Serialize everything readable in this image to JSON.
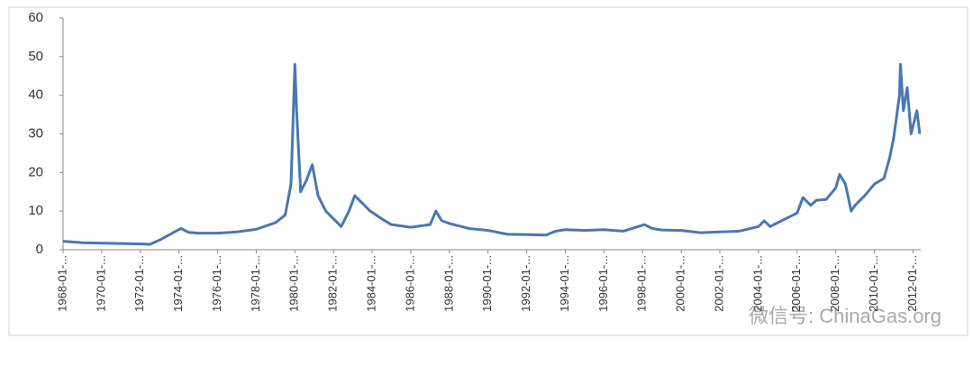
{
  "chart_data": {
    "type": "line",
    "x": [
      1968,
      1969,
      1970,
      1971,
      1972,
      1972.5,
      1973,
      1974.1,
      1974.5,
      1975,
      1976,
      1977,
      1978,
      1979,
      1979.5,
      1979.8,
      1980.0,
      1980.1,
      1980.3,
      1980.6,
      1980.9,
      1981.2,
      1981.6,
      1982,
      1982.4,
      1982.8,
      1983.1,
      1983.5,
      1983.9,
      1984.5,
      1985,
      1986,
      1987,
      1987.3,
      1987.6,
      1988,
      1989,
      1990,
      1991,
      1992,
      1993,
      1993.5,
      1994,
      1995,
      1996,
      1997,
      1998.1,
      1998.5,
      1999,
      2000,
      2001,
      2002,
      2003,
      2004,
      2004.3,
      2004.6,
      2005,
      2006,
      2006.3,
      2006.7,
      2007,
      2007.5,
      2008,
      2008.2,
      2008.5,
      2008.8,
      2009,
      2009.5,
      2010,
      2010.5,
      2010.8,
      2011,
      2011.3,
      2011.35,
      2011.5,
      2011.7,
      2011.9,
      2012.0,
      2012.2,
      2012.35
    ],
    "series": [
      {
        "color": "#4a76b5",
        "values": [
          2.2,
          1.8,
          1.7,
          1.6,
          1.5,
          1.4,
          2.5,
          5.5,
          4.5,
          4.3,
          4.3,
          4.6,
          5.3,
          7,
          9,
          17,
          48,
          35,
          15,
          18,
          22,
          14,
          10,
          8,
          6,
          10,
          14,
          12,
          10,
          8,
          6.5,
          5.8,
          6.5,
          10,
          7.5,
          6.8,
          5.5,
          5,
          4,
          3.9,
          3.8,
          4.8,
          5.2,
          5,
          5.2,
          4.8,
          6.5,
          5.5,
          5.1,
          5,
          4.4,
          4.6,
          4.8,
          6,
          7.5,
          6,
          7,
          9.5,
          13.5,
          11.5,
          12.8,
          13,
          16,
          19.5,
          17,
          10,
          11.5,
          14,
          17,
          18.5,
          24,
          29,
          40,
          48,
          36,
          42,
          30,
          32,
          36,
          30
        ]
      }
    ],
    "xlim": [
      1968,
      2012.4
    ],
    "xticks": [
      {
        "value": 1968,
        "label": "1968-01-..."
      },
      {
        "value": 1970,
        "label": "1970-01-..."
      },
      {
        "value": 1972,
        "label": "1972-01-..."
      },
      {
        "value": 1974,
        "label": "1974-01-..."
      },
      {
        "value": 1976,
        "label": "1976-01-..."
      },
      {
        "value": 1978,
        "label": "1978-01-..."
      },
      {
        "value": 1980,
        "label": "1980-01-..."
      },
      {
        "value": 1982,
        "label": "1982-01-..."
      },
      {
        "value": 1984,
        "label": "1984-01-..."
      },
      {
        "value": 1986,
        "label": "1986-01-..."
      },
      {
        "value": 1988,
        "label": "1988-01-..."
      },
      {
        "value": 1990,
        "label": "1990-01-..."
      },
      {
        "value": 1992,
        "label": "1992-01-..."
      },
      {
        "value": 1994,
        "label": "1994-01-..."
      },
      {
        "value": 1996,
        "label": "1996-01-..."
      },
      {
        "value": 1998,
        "label": "1998-01-..."
      },
      {
        "value": 2000,
        "label": "2000-01-..."
      },
      {
        "value": 2002,
        "label": "2002-01-..."
      },
      {
        "value": 2004,
        "label": "2004-01-..."
      },
      {
        "value": 2006,
        "label": "2006-01-..."
      },
      {
        "value": 2008,
        "label": "2008-01-..."
      },
      {
        "value": 2010,
        "label": "2010-01-..."
      },
      {
        "value": 2012,
        "label": "2012-01-..."
      }
    ],
    "ylim": [
      0,
      60
    ],
    "yticks": [
      0,
      10,
      20,
      30,
      40,
      50,
      60
    ],
    "watermark": "微信号: ChinaGas.org"
  }
}
